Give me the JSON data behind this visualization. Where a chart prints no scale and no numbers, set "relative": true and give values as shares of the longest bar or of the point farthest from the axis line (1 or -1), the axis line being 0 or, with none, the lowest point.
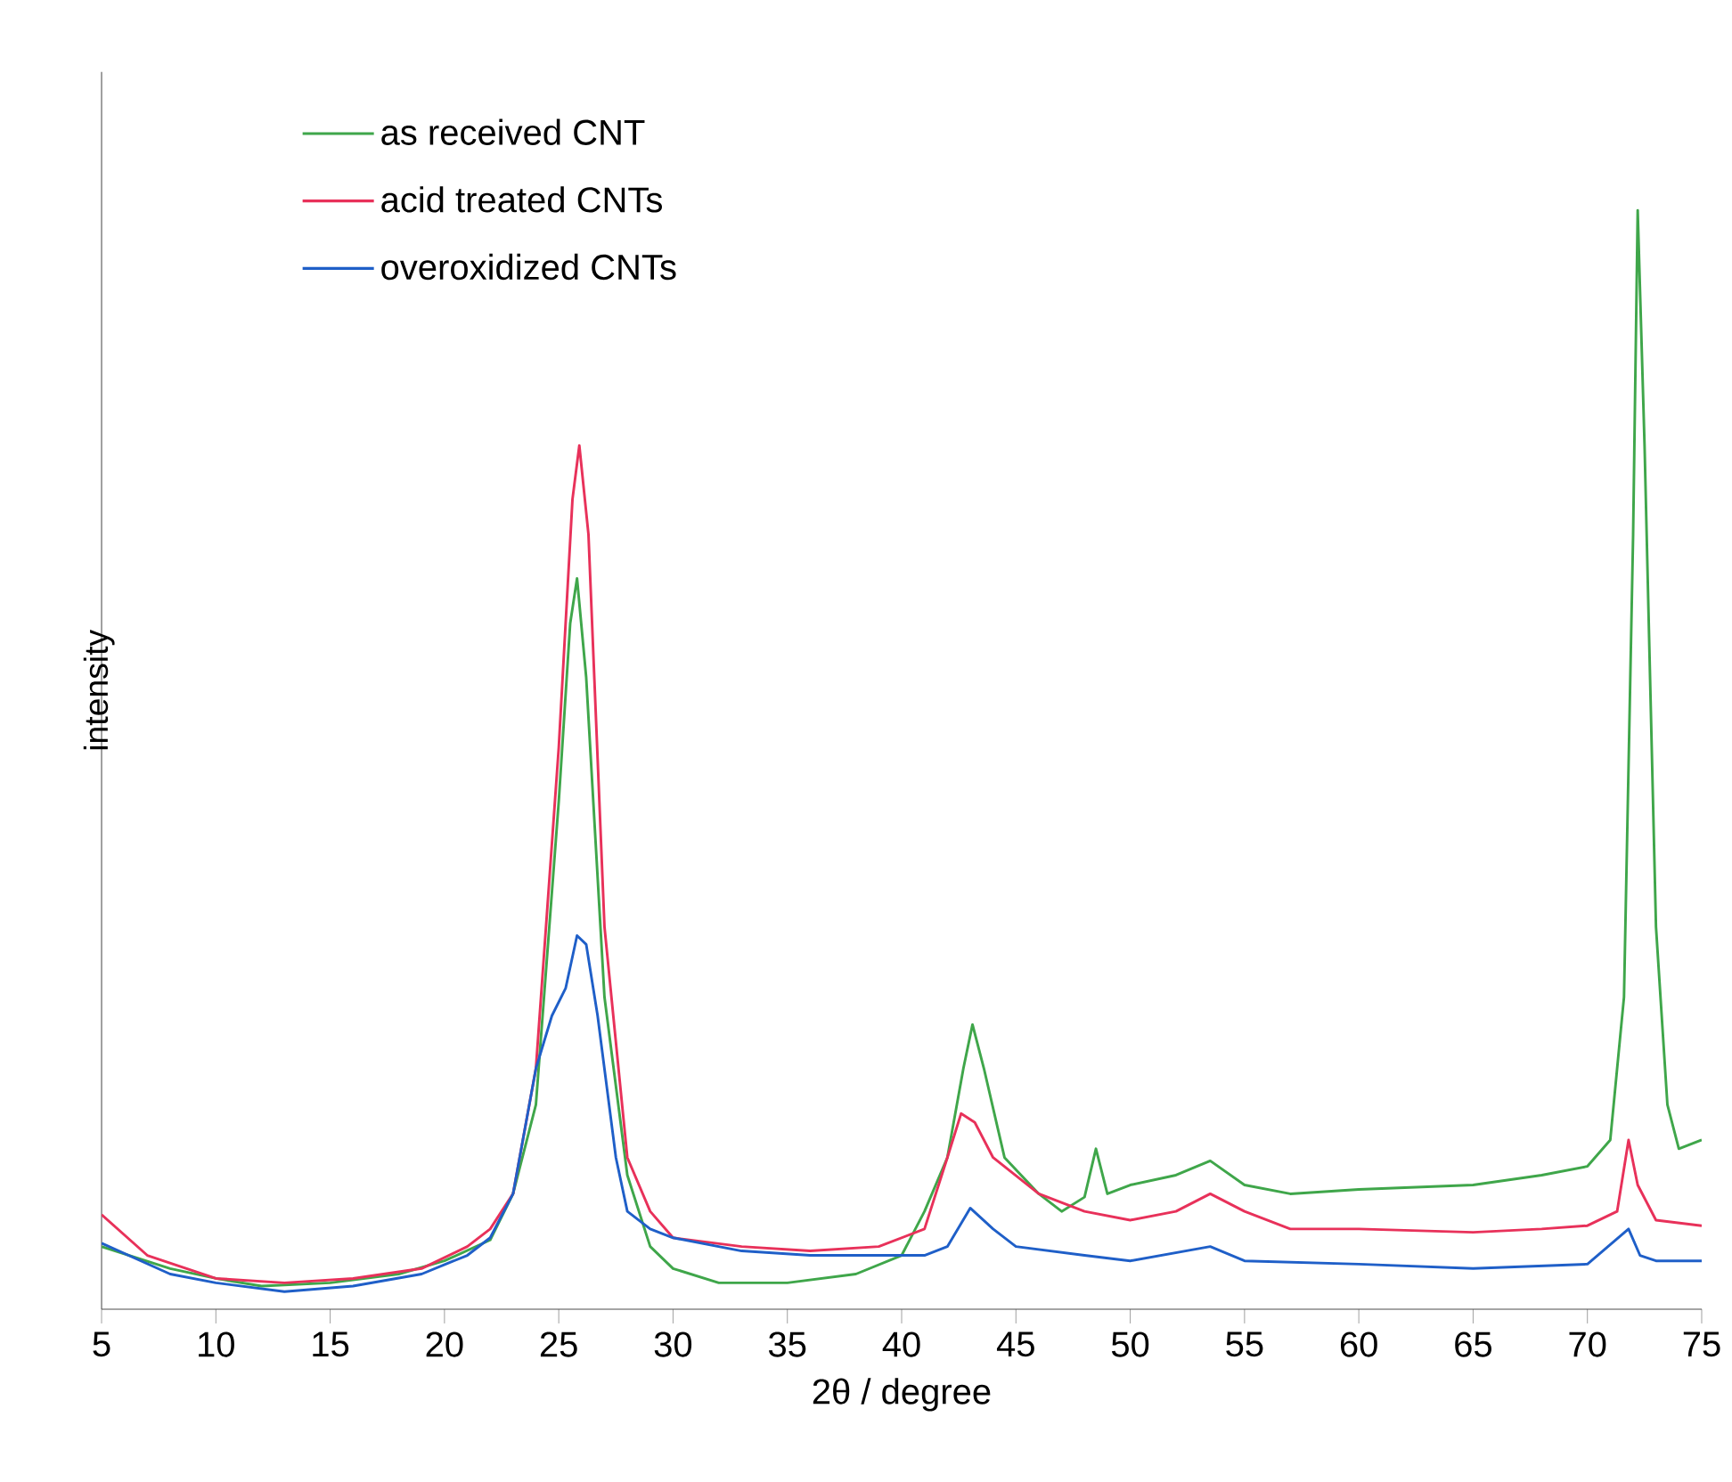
{
  "chart_data": {
    "type": "line",
    "relative": true,
    "xlabel": "2θ / degree",
    "ylabel": "intensity",
    "xlim": [
      5,
      75
    ],
    "xticks": [
      5,
      10,
      15,
      20,
      25,
      30,
      35,
      40,
      45,
      50,
      55,
      60,
      65,
      70,
      75
    ],
    "legend": "top left",
    "grid": false,
    "marker": "none",
    "line_style": "solid",
    "series": [
      {
        "name": "as received CNT",
        "color": "#3fa64a",
        "x": [
          5,
          8,
          10,
          12,
          15,
          18,
          20,
          22,
          23,
          24,
          25,
          25.5,
          25.8,
          26.2,
          27,
          28,
          29,
          30,
          32,
          35,
          38,
          40,
          41,
          42,
          42.7,
          43.1,
          43.6,
          44.5,
          46,
          47,
          48,
          48.5,
          49,
          50,
          52,
          53.5,
          55,
          57,
          60,
          65,
          68,
          70,
          71,
          71.6,
          72,
          72.2,
          72.5,
          73,
          73.5,
          74,
          75
        ],
        "values": [
          0.057,
          0.037,
          0.028,
          0.021,
          0.024,
          0.032,
          0.044,
          0.063,
          0.105,
          0.186,
          0.462,
          0.624,
          0.665,
          0.575,
          0.284,
          0.122,
          0.057,
          0.037,
          0.024,
          0.024,
          0.032,
          0.049,
          0.089,
          0.138,
          0.219,
          0.259,
          0.219,
          0.138,
          0.105,
          0.089,
          0.102,
          0.146,
          0.105,
          0.113,
          0.122,
          0.135,
          0.113,
          0.105,
          0.109,
          0.113,
          0.122,
          0.13,
          0.154,
          0.284,
          0.705,
          1,
          0.786,
          0.348,
          0.186,
          0.146,
          0.154
        ]
      },
      {
        "name": "acid treated CNTs",
        "color": "#e8315a",
        "x": [
          5,
          7,
          10,
          13,
          16,
          19,
          21,
          22,
          23,
          24,
          25,
          25.6,
          25.9,
          26.3,
          27,
          28,
          29,
          30,
          33,
          36,
          39,
          41,
          42,
          42.6,
          43.2,
          44,
          46,
          48,
          50,
          52,
          53.5,
          55,
          57,
          60,
          65,
          68,
          70,
          71.3,
          71.8,
          72.2,
          73,
          75
        ],
        "values": [
          0.086,
          0.049,
          0.028,
          0.024,
          0.028,
          0.037,
          0.057,
          0.073,
          0.105,
          0.219,
          0.511,
          0.737,
          0.786,
          0.705,
          0.348,
          0.138,
          0.089,
          0.065,
          0.057,
          0.053,
          0.057,
          0.073,
          0.138,
          0.178,
          0.17,
          0.138,
          0.105,
          0.089,
          0.081,
          0.089,
          0.105,
          0.089,
          0.073,
          0.073,
          0.07,
          0.073,
          0.076,
          0.089,
          0.154,
          0.113,
          0.081,
          0.076
        ]
      },
      {
        "name": "overoxidized CNTs",
        "color": "#1f5fc8",
        "x": [
          5,
          8,
          10,
          13,
          16,
          19,
          21,
          22,
          23,
          24,
          24.7,
          25.3,
          25.8,
          26.2,
          26.7,
          27.5,
          28,
          29,
          30,
          33,
          36,
          39,
          41,
          42,
          43,
          44,
          45,
          48,
          50,
          53.5,
          55,
          60,
          65,
          70,
          71.8,
          72.3,
          73,
          75
        ],
        "values": [
          0.06,
          0.032,
          0.024,
          0.016,
          0.021,
          0.032,
          0.049,
          0.065,
          0.105,
          0.219,
          0.267,
          0.292,
          0.34,
          0.332,
          0.267,
          0.138,
          0.089,
          0.073,
          0.065,
          0.053,
          0.049,
          0.049,
          0.049,
          0.057,
          0.092,
          0.073,
          0.057,
          0.049,
          0.044,
          0.057,
          0.044,
          0.041,
          0.037,
          0.041,
          0.073,
          0.049,
          0.044,
          0.044
        ]
      }
    ]
  }
}
